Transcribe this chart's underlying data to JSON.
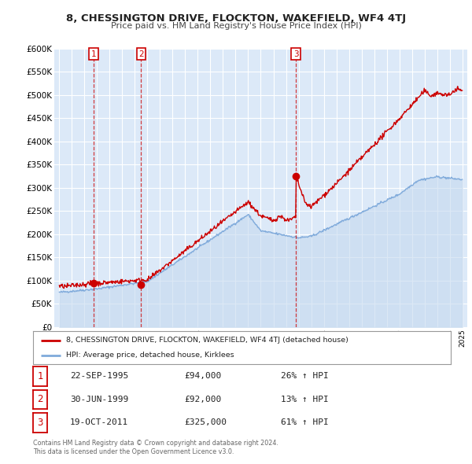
{
  "title": "8, CHESSINGTON DRIVE, FLOCKTON, WAKEFIELD, WF4 4TJ",
  "subtitle": "Price paid vs. HM Land Registry's House Price Index (HPI)",
  "ylim": [
    0,
    600000
  ],
  "yticks": [
    0,
    50000,
    100000,
    150000,
    200000,
    250000,
    300000,
    350000,
    400000,
    450000,
    500000,
    550000,
    600000
  ],
  "ytick_labels": [
    "£0",
    "£50K",
    "£100K",
    "£150K",
    "£200K",
    "£250K",
    "£300K",
    "£350K",
    "£400K",
    "£450K",
    "£500K",
    "£550K",
    "£600K"
  ],
  "xlim_start": 1992.6,
  "xlim_end": 2025.4,
  "xticks": [
    1993,
    1994,
    1995,
    1996,
    1997,
    1998,
    1999,
    2000,
    2001,
    2002,
    2003,
    2004,
    2005,
    2006,
    2007,
    2008,
    2009,
    2010,
    2011,
    2012,
    2013,
    2014,
    2015,
    2016,
    2017,
    2018,
    2019,
    2020,
    2021,
    2022,
    2023,
    2024,
    2025
  ],
  "background_color": "#ffffff",
  "plot_bg_color": "#dce9f8",
  "grid_color": "#ffffff",
  "hpi_color": "#7faadb",
  "hpi_fill_color": "#c5d9ef",
  "price_color": "#cc0000",
  "sale1_date": 1995.73,
  "sale1_price": 94000,
  "sale1_label": "1",
  "sale2_date": 1999.5,
  "sale2_price": 92000,
  "sale2_label": "2",
  "sale3_date": 2011.8,
  "sale3_price": 325000,
  "sale3_label": "3",
  "legend_line1": "8, CHESSINGTON DRIVE, FLOCKTON, WAKEFIELD, WF4 4TJ (detached house)",
  "legend_line2": "HPI: Average price, detached house, Kirklees",
  "table_rows": [
    {
      "num": "1",
      "date": "22-SEP-1995",
      "price": "£94,000",
      "change": "26% ↑ HPI"
    },
    {
      "num": "2",
      "date": "30-JUN-1999",
      "price": "£92,000",
      "change": "13% ↑ HPI"
    },
    {
      "num": "3",
      "date": "19-OCT-2011",
      "price": "£325,000",
      "change": "61% ↑ HPI"
    }
  ],
  "footnote1": "Contains HM Land Registry data © Crown copyright and database right 2024.",
  "footnote2": "This data is licensed under the Open Government Licence v3.0."
}
